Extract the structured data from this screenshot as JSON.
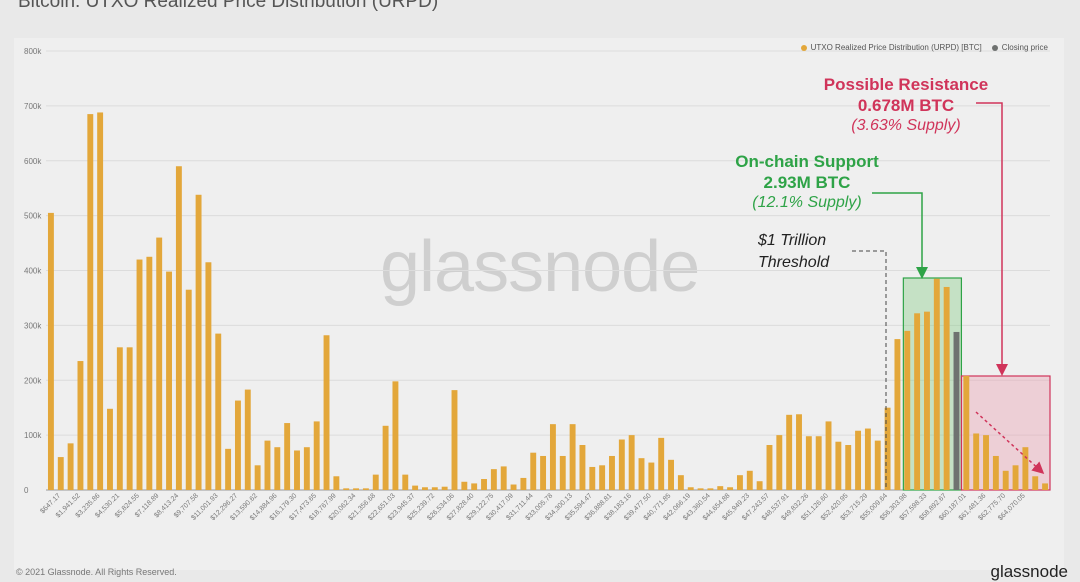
{
  "title": "Bitcoin: UTXO Realized Price Distribution (URPD)",
  "watermark": "glassnode",
  "footer": "© 2021 Glassnode. All Rights Reserved.",
  "brand": "glassnode",
  "colors": {
    "bar": "#e3a73a",
    "closing": "#6f7270",
    "support": "#2ea347",
    "resistance": "#d0345a"
  },
  "legend": [
    {
      "label": "UTXO Realized Price Distribution (URPD) [BTC]",
      "color": "#e3a73a"
    },
    {
      "label": "Closing price",
      "color": "#6f7270"
    }
  ],
  "annotations": {
    "resistance_title1": "Possible Resistance",
    "resistance_title2": "0.678M BTC",
    "resistance_sub": "(3.63% Supply)",
    "support_title1": "On-chain Support",
    "support_title2": "2.93M BTC",
    "support_sub": "(12.1% Supply)",
    "threshold1": "$1 Trillion",
    "threshold2": "Threshold"
  },
  "chart_data": {
    "type": "bar",
    "ylim": [
      0,
      800000
    ],
    "yticks": [
      "0",
      "100k",
      "200k",
      "300k",
      "400k",
      "500k",
      "600k",
      "700k",
      "800k"
    ],
    "grid": true,
    "legend_position": "top-right",
    "xtick_labels": [
      "$647.17",
      "$1,941.52",
      "$3,235.86",
      "$4,530.21",
      "$5,824.55",
      "$7,118.89",
      "$8,413.24",
      "$9,707.58",
      "$11,001.93",
      "$12,296.27",
      "$13,590.62",
      "$14,884.96",
      "$16,179.30",
      "$17,473.65",
      "$18,767.99",
      "$20,062.34",
      "$21,356.68",
      "$22,651.03",
      "$23,945.37",
      "$25,239.72",
      "$26,534.06",
      "$27,828.40",
      "$29,122.75",
      "$30,417.09",
      "$31,711.44",
      "$33,005.78",
      "$34,300.13",
      "$35,594.47",
      "$36,888.81",
      "$38,183.16",
      "$39,477.50",
      "$40,771.85",
      "$42,066.19",
      "$43,360.54",
      "$44,654.88",
      "$45,949.23",
      "$47,243.57",
      "$48,537.91",
      "$49,832.26",
      "$51,126.60",
      "$52,420.95",
      "$53,715.29",
      "$55,009.64",
      "$56,303.98",
      "$57,598.33",
      "$58,892.67",
      "$60,187.01",
      "$61,481.36",
      "$62,775.70",
      "$64,070.05"
    ],
    "values": [
      505000,
      60000,
      85000,
      235000,
      685000,
      688000,
      148000,
      260000,
      260000,
      420000,
      425000,
      460000,
      398000,
      590000,
      365000,
      538000,
      415000,
      285000,
      75000,
      163000,
      183000,
      45000,
      90000,
      78000,
      122000,
      72000,
      78000,
      125000,
      282000,
      25000,
      3000,
      3000,
      3000,
      28000,
      117000,
      198000,
      28000,
      8000,
      5000,
      5000,
      6000,
      182000,
      15000,
      12000,
      20000,
      38000,
      43000,
      10000,
      22000,
      68000,
      62000,
      120000,
      62000,
      120000,
      82000,
      42000,
      45000,
      62000,
      92000,
      100000,
      58000,
      50000,
      95000,
      55000,
      27000,
      5000,
      3000,
      3000,
      7000,
      5000,
      27000,
      35000,
      16000,
      82000,
      100000,
      137000,
      138000,
      98000,
      98000,
      125000,
      88000,
      82000,
      108000,
      112000,
      90000,
      150000,
      275000,
      290000,
      322000,
      325000,
      385000,
      370000,
      288000,
      208000,
      103000,
      100000,
      62000,
      35000,
      45000,
      78000,
      25000,
      12000
    ],
    "closing_price_index": 92,
    "series": [
      {
        "name": "UTXO Realized Price Distribution (URPD) [BTC]"
      },
      {
        "name": "Closing price"
      }
    ]
  }
}
